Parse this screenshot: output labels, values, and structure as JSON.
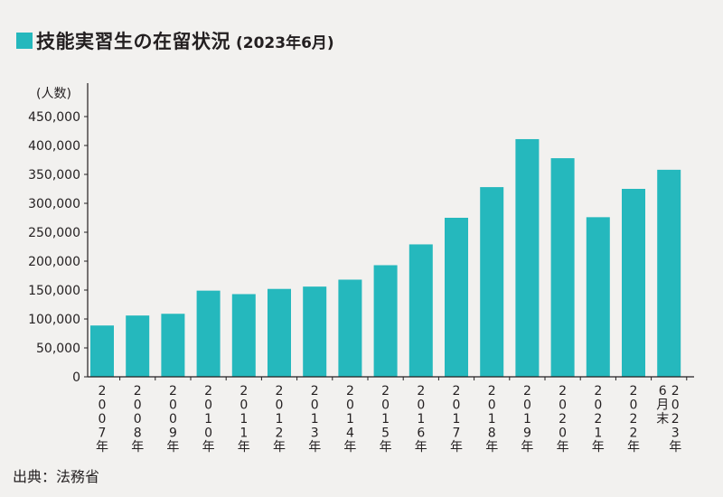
{
  "title": "技能実習生の在留状況",
  "subtitle": "(2023年6月)",
  "source": "出典：法務省",
  "accent_color": "#25b8bd",
  "chart_data": {
    "type": "bar",
    "ylabel": "(人数)",
    "ylim": [
      0,
      450000
    ],
    "yticks": [
      "0",
      "50,000",
      "100,000",
      "150,000",
      "200,000",
      "250,000",
      "300,000",
      "350,000",
      "400,000",
      "450,000"
    ],
    "categories": [
      "2007年",
      "2008年",
      "2009年",
      "2010年",
      "2011年",
      "2012年",
      "2013年",
      "2014年",
      "2015年",
      "2016年",
      "2017年",
      "2018年",
      "2019年",
      "2020年",
      "2021年",
      "2022年",
      "2023年6月末"
    ],
    "category_vertical_labels": [
      [
        "2",
        "0",
        "0",
        "7",
        "年"
      ],
      [
        "2",
        "0",
        "0",
        "8",
        "年"
      ],
      [
        "2",
        "0",
        "0",
        "9",
        "年"
      ],
      [
        "2",
        "0",
        "1",
        "0",
        "年"
      ],
      [
        "2",
        "0",
        "1",
        "1",
        "年"
      ],
      [
        "2",
        "0",
        "1",
        "2",
        "年"
      ],
      [
        "2",
        "0",
        "1",
        "3",
        "年"
      ],
      [
        "2",
        "0",
        "1",
        "4",
        "年"
      ],
      [
        "2",
        "0",
        "1",
        "5",
        "年"
      ],
      [
        "2",
        "0",
        "1",
        "6",
        "年"
      ],
      [
        "2",
        "0",
        "1",
        "7",
        "年"
      ],
      [
        "2",
        "0",
        "1",
        "8",
        "年"
      ],
      [
        "2",
        "0",
        "1",
        "9",
        "年"
      ],
      [
        "2",
        "0",
        "2",
        "0",
        "年"
      ],
      [
        "2",
        "0",
        "2",
        "1",
        "年"
      ],
      [
        "2",
        "0",
        "2",
        "2",
        "年"
      ],
      [
        "2",
        "0",
        "2",
        "3",
        "年"
      ]
    ],
    "extra_label_last": [
      "6",
      "月",
      "末"
    ],
    "values": [
      88728,
      106000,
      109000,
      149000,
      143000,
      152000,
      156000,
      168000,
      193000,
      229000,
      275000,
      328000,
      411000,
      378000,
      276000,
      325000,
      358000
    ],
    "grid": false,
    "legend": "none"
  }
}
